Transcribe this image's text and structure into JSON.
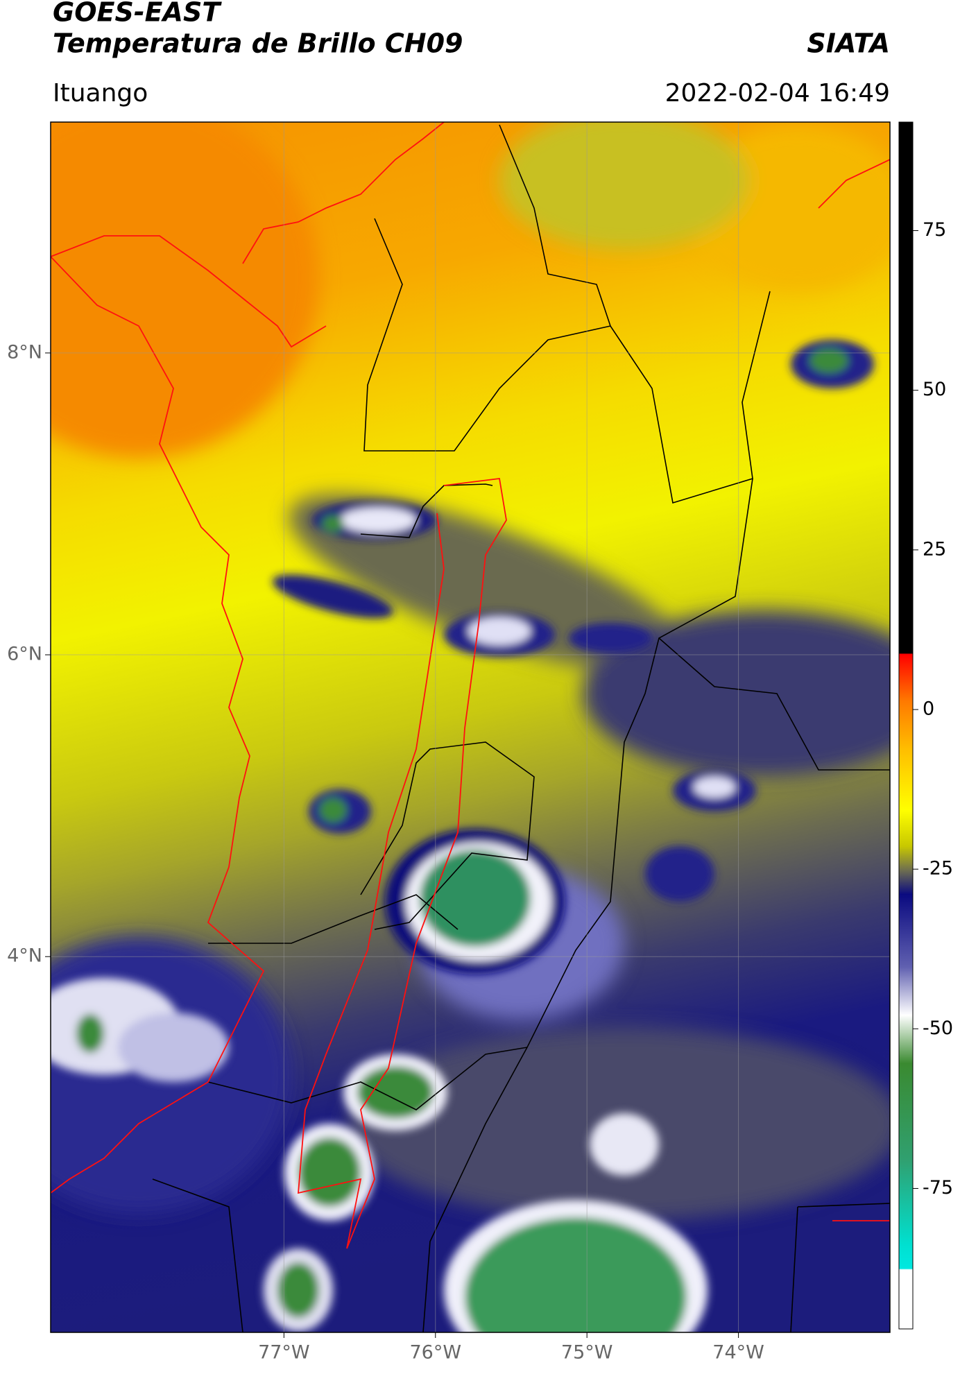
{
  "header": {
    "title": "GOES-EAST",
    "subtitle": "Temperatura de Brillo CH09",
    "brand": "SIATA",
    "location": "Ituango",
    "datetime": "2022-02-04 16:49"
  },
  "map": {
    "xlim": [
      -78.54,
      -73.0
    ],
    "ylim": [
      1.51,
      9.53
    ],
    "lon_ticks": [
      {
        "value": -77,
        "label": "77°W"
      },
      {
        "value": -76,
        "label": "76°W"
      },
      {
        "value": -75,
        "label": "75°W"
      },
      {
        "value": -74,
        "label": "74°W"
      }
    ],
    "lat_ticks": [
      {
        "value": 8,
        "label": "8°N"
      },
      {
        "value": 6,
        "label": "6°N"
      },
      {
        "value": 4,
        "label": "4°N"
      }
    ],
    "grid": true
  },
  "colorbar": {
    "lim": [
      -97,
      92
    ],
    "ticks": [
      75,
      50,
      25,
      0,
      -25,
      -50,
      -75
    ]
  }
}
